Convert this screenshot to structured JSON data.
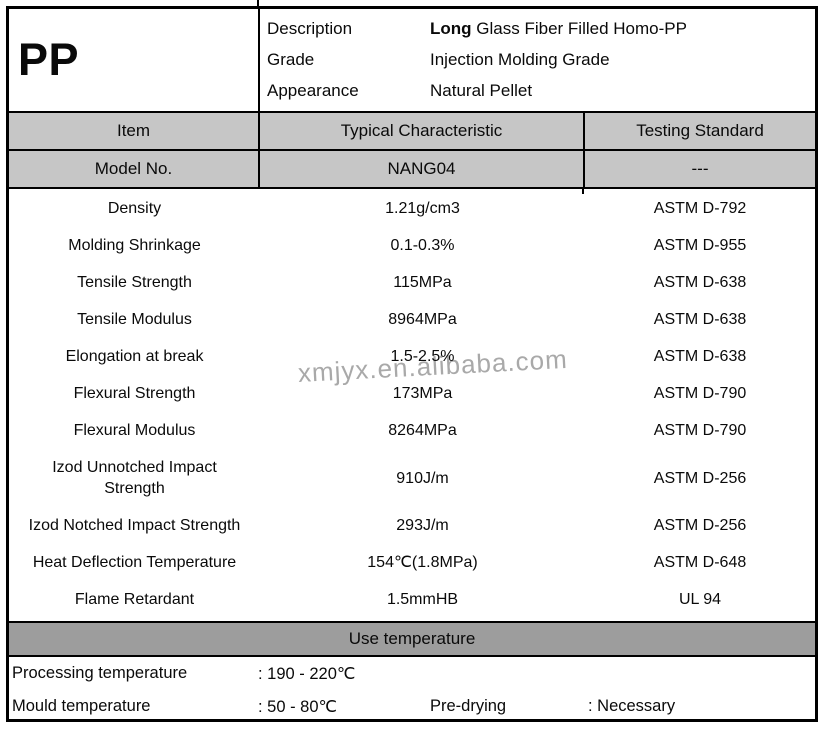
{
  "product": {
    "code": "PP",
    "info_rows": [
      {
        "label": "Description",
        "value_bold": "Long",
        "value_rest": " Glass Fiber Filled Homo-PP"
      },
      {
        "label": "Grade",
        "value": "Injection Molding Grade"
      },
      {
        "label": "Appearance",
        "value": "Natural Pellet"
      }
    ]
  },
  "spec_table": {
    "headers": [
      "Item",
      "Typical Characteristic",
      "Testing Standard"
    ],
    "model_row": {
      "item": "Model No.",
      "characteristic": "NANG04",
      "standard": "---"
    },
    "rows": [
      {
        "item": "Density",
        "characteristic": "1.21g/cm3",
        "standard": "ASTM D-792"
      },
      {
        "item": "Molding Shrinkage",
        "characteristic": "0.1-0.3%",
        "standard": "ASTM D-955"
      },
      {
        "item": "Tensile Strength",
        "characteristic": "115MPa",
        "standard": "ASTM D-638"
      },
      {
        "item": "Tensile Modulus",
        "characteristic": "8964MPa",
        "standard": "ASTM D-638"
      },
      {
        "item": "Elongation at break",
        "characteristic": "1.5-2.5%",
        "standard": "ASTM D-638"
      },
      {
        "item": "Flexural Strength",
        "characteristic": "173MPa",
        "standard": "ASTM D-790"
      },
      {
        "item": "Flexural Modulus",
        "characteristic": "8264MPa",
        "standard": "ASTM D-790"
      },
      {
        "item": "Izod Unnotched Impact\nStrength",
        "characteristic": "910J/m",
        "standard": "ASTM D-256"
      },
      {
        "item": "Izod Notched Impact Strength",
        "characteristic": "293J/m",
        "standard": "ASTM D-256"
      },
      {
        "item": "Heat Deflection Temperature",
        "characteristic": "154℃(1.8MPa)",
        "standard": "ASTM D-648"
      },
      {
        "item": "Flame Retardant",
        "characteristic": "1.5mmHB",
        "standard": "UL 94"
      }
    ]
  },
  "use_temperature": {
    "title": "Use temperature",
    "processing": {
      "label": "Processing temperature",
      "value": ": 190 - 220℃"
    },
    "mould": {
      "label": "Mould temperature",
      "value": ": 50 - 80℃",
      "label2": "Pre-drying",
      "value2": ": Necessary"
    }
  },
  "watermark": "xmjyx.en.alibaba.com",
  "colors": {
    "header_bg": "#c6c6c6",
    "banner_bg": "#9d9d9d",
    "border_color": "#000000",
    "watermark_color": "#a9a9a9",
    "text_color": "#0a0a0a"
  }
}
